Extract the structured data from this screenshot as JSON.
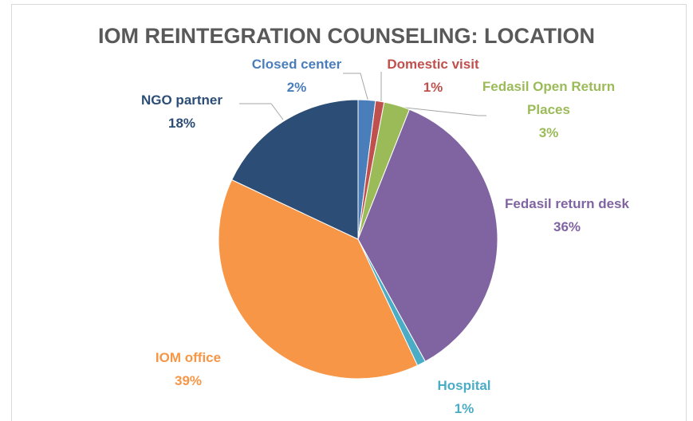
{
  "chart_data": {
    "type": "pie",
    "title": "IOM REINTEGRATION COUNSELING: LOCATION",
    "categories": [
      "Closed center",
      "Domestic visit",
      "Fedasil Open Return Places",
      "Fedasil return desk",
      "Hospital",
      "IOM office",
      "NGO partner"
    ],
    "values": [
      2,
      1,
      3,
      36,
      1,
      39,
      18
    ],
    "value_labels": [
      "2%",
      "1%",
      "3%",
      "36%",
      "1%",
      "39%",
      "18%"
    ],
    "colors": [
      "#4a7ebb",
      "#c0504d",
      "#9bbb59",
      "#8064a2",
      "#4bacc6",
      "#f79646",
      "#2c4d75"
    ]
  }
}
